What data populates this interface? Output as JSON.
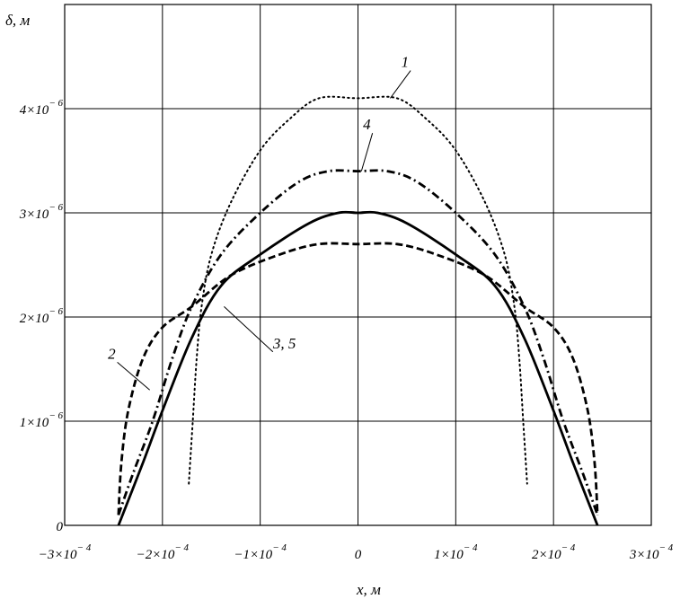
{
  "chart_data": {
    "type": "line",
    "xlabel": "x, м",
    "ylabel": "δ, м",
    "xlim": [
      -0.0003,
      0.0003
    ],
    "ylim": [
      0,
      5e-06
    ],
    "grid": true,
    "x_ticks": [
      {
        "value": -0.0003,
        "base": "−3×10",
        "exp": "− 4"
      },
      {
        "value": -0.0002,
        "base": "−2×10",
        "exp": "− 4"
      },
      {
        "value": -0.0001,
        "base": "−1×10",
        "exp": "− 4"
      },
      {
        "value": 0,
        "base": "0",
        "exp": ""
      },
      {
        "value": 0.0001,
        "base": "1×10",
        "exp": "− 4"
      },
      {
        "value": 0.0002,
        "base": "2×10",
        "exp": "− 4"
      },
      {
        "value": 0.0003,
        "base": "3×10",
        "exp": "− 4"
      }
    ],
    "y_ticks": [
      {
        "value": 0,
        "base": "0",
        "exp": ""
      },
      {
        "value": 1e-06,
        "base": "1×10",
        "exp": "− 6"
      },
      {
        "value": 2e-06,
        "base": "2×10",
        "exp": "− 6"
      },
      {
        "value": 3e-06,
        "base": "3×10",
        "exp": "− 6"
      },
      {
        "value": 4e-06,
        "base": "4×10",
        "exp": "− 6"
      }
    ],
    "series": [
      {
        "name": "1",
        "style": "dotted",
        "points": [
          [
            -0.000173,
            4e-07
          ],
          [
            -0.000169,
            1e-06
          ],
          [
            -0.000165,
            1.6e-06
          ],
          [
            -0.00016,
            2.1e-06
          ],
          [
            -0.00015,
            2.6e-06
          ],
          [
            -0.00013,
            3.1e-06
          ],
          [
            -0.0001,
            3.6e-06
          ],
          [
            -7e-05,
            3.9e-06
          ],
          [
            -4e-05,
            4.1e-06
          ],
          [
            0,
            4.1e-06
          ],
          [
            4e-05,
            4.1e-06
          ],
          [
            7e-05,
            3.9e-06
          ],
          [
            0.0001,
            3.6e-06
          ],
          [
            0.00013,
            3.1e-06
          ],
          [
            0.00015,
            2.6e-06
          ],
          [
            0.00016,
            2.1e-06
          ],
          [
            0.000165,
            1.6e-06
          ],
          [
            0.000169,
            1e-06
          ],
          [
            0.000173,
            4e-07
          ]
        ]
      },
      {
        "name": "2",
        "style": "dashed",
        "points": [
          [
            -0.000245,
            1e-07
          ],
          [
            -0.000242,
            6e-07
          ],
          [
            -0.000235,
            1.1e-06
          ],
          [
            -0.00022,
            1.6e-06
          ],
          [
            -0.0002,
            1.9e-06
          ],
          [
            -0.00017,
            2.1e-06
          ],
          [
            -0.00013,
            2.4e-06
          ],
          [
            -8e-05,
            2.6e-06
          ],
          [
            -4e-05,
            2.7e-06
          ],
          [
            0,
            2.7e-06
          ],
          [
            4e-05,
            2.7e-06
          ],
          [
            8e-05,
            2.6e-06
          ],
          [
            0.00013,
            2.4e-06
          ],
          [
            0.00017,
            2.1e-06
          ],
          [
            0.0002,
            1.9e-06
          ],
          [
            0.00022,
            1.6e-06
          ],
          [
            0.000235,
            1.1e-06
          ],
          [
            0.000242,
            6e-07
          ],
          [
            0.000245,
            1e-07
          ]
        ]
      },
      {
        "name": "3, 5",
        "style": "solid",
        "points": [
          [
            -0.000245,
            0
          ],
          [
            -0.00022,
            6e-07
          ],
          [
            -0.0002,
            1.1e-06
          ],
          [
            -0.00017,
            1.8e-06
          ],
          [
            -0.00014,
            2.3e-06
          ],
          [
            -0.0001,
            2.6e-06
          ],
          [
            -5e-05,
            2.9e-06
          ],
          [
            -2e-05,
            3e-06
          ],
          [
            0,
            3e-06
          ],
          [
            2e-05,
            3e-06
          ],
          [
            5e-05,
            2.9e-06
          ],
          [
            0.0001,
            2.6e-06
          ],
          [
            0.00014,
            2.3e-06
          ],
          [
            0.00017,
            1.8e-06
          ],
          [
            0.0002,
            1.1e-06
          ],
          [
            0.00022,
            6e-07
          ],
          [
            0.000245,
            0
          ]
        ]
      },
      {
        "name": "4",
        "style": "dashdot",
        "points": [
          [
            -0.000245,
            1e-07
          ],
          [
            -0.00023,
            5e-07
          ],
          [
            -0.00021,
            1e-06
          ],
          [
            -0.00019,
            1.6e-06
          ],
          [
            -0.00017,
            2.1e-06
          ],
          [
            -0.00014,
            2.6e-06
          ],
          [
            -0.0001,
            3e-06
          ],
          [
            -6e-05,
            3.3e-06
          ],
          [
            -3e-05,
            3.4e-06
          ],
          [
            0,
            3.4e-06
          ],
          [
            3e-05,
            3.4e-06
          ],
          [
            6e-05,
            3.3e-06
          ],
          [
            0.0001,
            3e-06
          ],
          [
            0.00014,
            2.6e-06
          ],
          [
            0.00017,
            2.1e-06
          ],
          [
            0.00019,
            1.6e-06
          ],
          [
            0.00021,
            1e-06
          ],
          [
            0.00023,
            5e-07
          ],
          [
            0.000245,
            1e-07
          ]
        ]
      }
    ],
    "annotations": [
      {
        "text": "1",
        "series": "1",
        "label_at": [
          5.2e-05,
          4.4e-06
        ],
        "point_at": [
          3.3e-05,
          4.1e-06
        ]
      },
      {
        "text": "4",
        "series": "4",
        "label_at": [
          1.3e-05,
          3.8e-06
        ],
        "point_at": [
          3.5e-06,
          3.4e-06
        ]
      },
      {
        "text": "2",
        "series": "2",
        "label_at": [
          -0.000248,
          1.6e-06
        ],
        "point_at": [
          -0.000213,
          1.3e-06
        ]
      },
      {
        "text": "3, 5",
        "series": "3, 5",
        "label_at": [
          -8.7e-05,
          1.7e-06
        ],
        "point_at": [
          -0.000137,
          2.1e-06
        ]
      }
    ]
  }
}
